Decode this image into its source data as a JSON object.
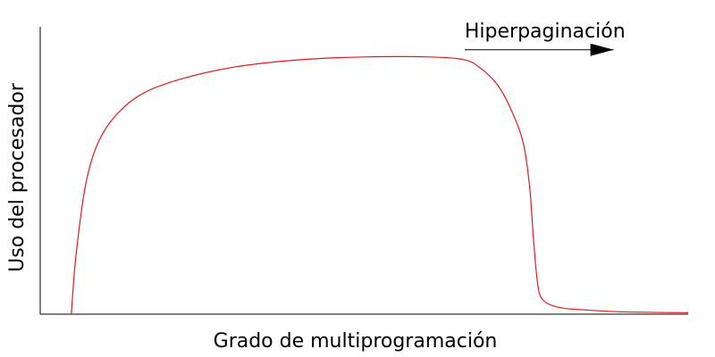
{
  "chart_data": {
    "type": "line",
    "title": "",
    "xlabel": "Grado de multiprogramación",
    "ylabel": "Uso del procesador",
    "xlim": [
      0,
      100
    ],
    "ylim": [
      0,
      100
    ],
    "grid": false,
    "ticks": false,
    "series": [
      {
        "name": "Uso del procesador",
        "color": "#e41a1c",
        "x": [
          4.8,
          5.5,
          7.0,
          9.0,
          12.0,
          16.0,
          22.0,
          30.0,
          40.0,
          50.0,
          60.0,
          65.5,
          68.0,
          70.5,
          72.5,
          74.5,
          75.5,
          76.0,
          76.5,
          77.0,
          77.8,
          79.0,
          81.0,
          84.0,
          90.0,
          100.0
        ],
        "y": [
          0,
          20,
          45,
          60,
          70,
          77,
          82,
          86,
          88.5,
          89.5,
          89.5,
          88.5,
          85.5,
          80.0,
          72.0,
          60.0,
          45.0,
          30.0,
          16.0,
          7.5,
          4.5,
          3.0,
          2.0,
          1.5,
          0.8,
          0.5
        ]
      }
    ],
    "annotations": [
      {
        "text": "Hiperpaginación",
        "arrow_from": [
          65.5,
          92
        ],
        "arrow_to": [
          88.5,
          92
        ],
        "color": "#000000"
      }
    ]
  }
}
